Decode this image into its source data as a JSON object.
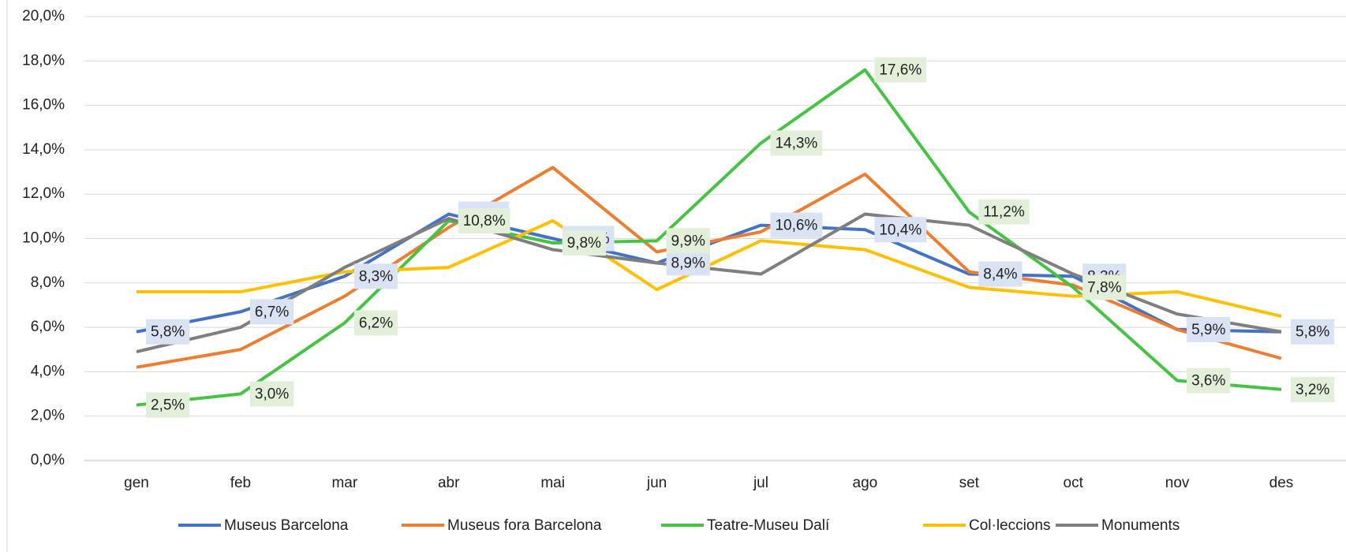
{
  "chart_data": {
    "type": "line",
    "categories": [
      "gen",
      "feb",
      "mar",
      "abr",
      "mai",
      "jun",
      "jul",
      "ago",
      "set",
      "oct",
      "nov",
      "des"
    ],
    "series": [
      {
        "name": "Museus Barcelona",
        "color": "#4472c4",
        "values": [
          5.8,
          6.7,
          8.3,
          11.1,
          10.0,
          8.9,
          10.6,
          10.4,
          8.4,
          8.3,
          5.9,
          5.8
        ],
        "value_labels": [
          "5,8%",
          "6,7%",
          "8,3%",
          "11,1%",
          "10.0%",
          "8,9%",
          "10,6%",
          "10,4%",
          "8,4%",
          "8,3%",
          "5,9%",
          "5,8%"
        ]
      },
      {
        "name": "Museus fora Barcelona",
        "color": "#ed7d31",
        "values": [
          4.2,
          5.0,
          7.4,
          10.5,
          13.2,
          9.4,
          10.3,
          12.9,
          8.5,
          7.9,
          5.9,
          4.6
        ]
      },
      {
        "name": "Teatre-Museu Dalí",
        "color": "#45c443",
        "values": [
          2.5,
          3.0,
          6.2,
          10.8,
          9.8,
          9.9,
          14.3,
          17.6,
          11.2,
          7.8,
          3.6,
          3.2
        ],
        "value_labels": [
          "2,5%",
          "3,0%",
          "6,2%",
          "10,8%",
          "9,8%",
          "9,9%",
          "14,3%",
          "17,6%",
          "11,2%",
          "7,8%",
          "3,6%",
          "3,2%"
        ]
      },
      {
        "name": "Col·leccions",
        "color": "#ffc000",
        "values": [
          7.6,
          7.6,
          8.5,
          8.7,
          10.8,
          7.7,
          9.9,
          9.5,
          7.8,
          7.4,
          7.6,
          6.5
        ]
      },
      {
        "name": "Monuments",
        "color": "#7f7f7f",
        "values": [
          4.9,
          6.0,
          8.7,
          10.9,
          9.5,
          8.9,
          8.4,
          11.1,
          10.6,
          8.4,
          6.6,
          5.8
        ]
      }
    ],
    "ylim": [
      0,
      20
    ],
    "yticks": [
      {
        "value": 0,
        "label": "0,0%"
      },
      {
        "value": 2,
        "label": "2,0%"
      },
      {
        "value": 4,
        "label": "4,0%"
      },
      {
        "value": 6,
        "label": "6,0%"
      },
      {
        "value": 8,
        "label": "8,0%"
      },
      {
        "value": 10,
        "label": "10,0%"
      },
      {
        "value": 12,
        "label": "12,0%"
      },
      {
        "value": 14,
        "label": "14,0%"
      },
      {
        "value": 16,
        "label": "16,0%"
      },
      {
        "value": 18,
        "label": "18,0%"
      },
      {
        "value": 20,
        "label": "20,0%"
      }
    ],
    "grid": true,
    "legend": "bottom"
  }
}
